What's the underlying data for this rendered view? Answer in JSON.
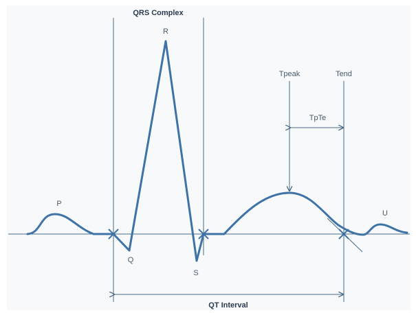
{
  "colors": {
    "waveform": "#3f72a6",
    "guide": "#4a6a8a",
    "text": "#4a5a6a",
    "background": "#f7f9fb"
  },
  "labels": {
    "qrs_complex": "QRS Complex",
    "p": "P",
    "q": "Q",
    "r": "R",
    "s": "S",
    "tpeak": "Tpeak",
    "tend": "Tend",
    "tpte": "TpTe",
    "u": "U",
    "qt_interval": "QT Interval"
  }
}
